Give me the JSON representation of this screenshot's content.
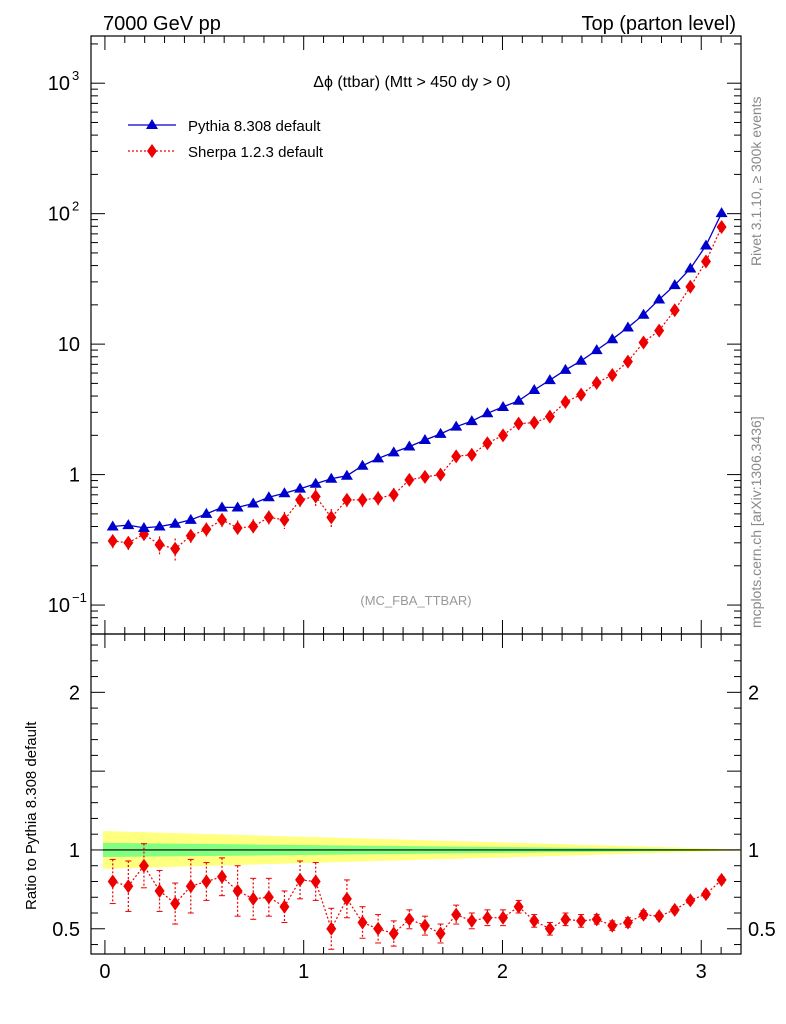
{
  "header": {
    "left": "7000 GeV pp",
    "right": "Top (parton level)"
  },
  "side": {
    "rivet": "Rivet 3.1.10, ≥ 300k events",
    "mcplots": "mcplots.cern.ch [arXiv:1306.3436]"
  },
  "chart_data": [
    {
      "type": "scatter",
      "panel": "main",
      "title": "Δϕ (ttbar) (Mtt > 450 dy > 0)",
      "watermark": "(MC_FBA_TTBAR)",
      "xlabel": "",
      "ylabel": "",
      "yscale": "log",
      "xlim": [
        -0.07,
        3.2
      ],
      "ylim": [
        0.06,
        2300
      ],
      "legend_position": "top-left",
      "y_ticks": [
        {
          "base": "10",
          "exp": "−1",
          "value": 0.1
        },
        {
          "base": "1",
          "exp": "",
          "value": 1
        },
        {
          "base": "10",
          "exp": "",
          "value": 10
        },
        {
          "base": "10",
          "exp": "2",
          "value": 100
        },
        {
          "base": "10",
          "exp": "3",
          "value": 1000
        }
      ],
      "x": [
        0.0393,
        0.1178,
        0.1963,
        0.2749,
        0.3534,
        0.432,
        0.5105,
        0.589,
        0.6676,
        0.7461,
        0.8247,
        0.9032,
        0.9817,
        1.0603,
        1.1388,
        1.2174,
        1.2959,
        1.3744,
        1.453,
        1.5315,
        1.6101,
        1.6886,
        1.7671,
        1.8457,
        1.9242,
        2.0028,
        2.0813,
        2.1598,
        2.2384,
        2.3169,
        2.3955,
        2.474,
        2.5525,
        2.6311,
        2.7096,
        2.7882,
        2.8667,
        2.9452,
        3.0238,
        3.1023
      ],
      "series": [
        {
          "name": "Pythia 8.308 default",
          "color": "#0000cc",
          "marker": "triangle",
          "line": "solid",
          "values": [
            0.4,
            0.41,
            0.39,
            0.4,
            0.42,
            0.45,
            0.5,
            0.56,
            0.56,
            0.6,
            0.67,
            0.72,
            0.78,
            0.85,
            0.93,
            0.98,
            1.17,
            1.33,
            1.48,
            1.64,
            1.84,
            2.05,
            2.33,
            2.57,
            2.95,
            3.3,
            3.68,
            4.45,
            5.3,
            6.35,
            7.45,
            9.0,
            10.9,
            13.4,
            16.8,
            22.0,
            28.3,
            38.0,
            57.0,
            101.0
          ]
        },
        {
          "name": "Sherpa 1.2.3 default",
          "color": "#ee0000",
          "marker": "diamond",
          "line": "dotted",
          "values": [
            0.31,
            0.3,
            0.35,
            0.29,
            0.27,
            0.34,
            0.38,
            0.45,
            0.39,
            0.4,
            0.47,
            0.45,
            0.64,
            0.68,
            0.47,
            0.64,
            0.64,
            0.66,
            0.7,
            0.91,
            0.96,
            1.0,
            1.38,
            1.42,
            1.74,
            2.0,
            2.46,
            2.5,
            2.78,
            3.6,
            4.1,
            5.05,
            5.8,
            7.35,
            10.3,
            12.7,
            18.2,
            27.5,
            43.0,
            79.0
          ],
          "rel_err": [
            0.12,
            0.12,
            0.11,
            0.16,
            0.2,
            0.12,
            0.13,
            0.12,
            0.14,
            0.14,
            0.13,
            0.15,
            0.12,
            0.16,
            0.16,
            0.12,
            0.12,
            0.13,
            0.13,
            0.09,
            0.1,
            0.1,
            0.07,
            0.07,
            0.07,
            0.07,
            0.06,
            0.07,
            0.07,
            0.05,
            0.05,
            0.04,
            0.04,
            0.04,
            0.03,
            0.03,
            0.03,
            0.02,
            0.02,
            0.02
          ]
        }
      ]
    },
    {
      "type": "scatter",
      "panel": "ratio",
      "ylabel": "Ratio to Pythia 8.308 default",
      "xlim": [
        -0.07,
        3.2
      ],
      "ylim": [
        0.34,
        2.37
      ],
      "x_ticks": [
        0,
        1,
        2,
        3
      ],
      "y_ticks": [
        0.5,
        1,
        2
      ],
      "reference": 1.0,
      "band_inner": [
        0.045,
        0.028
      ],
      "band_outer": [
        0.12,
        0.004
      ],
      "series": [
        {
          "name": "Sherpa 1.2.3 default",
          "color": "#ee0000",
          "values": [
            0.8,
            0.77,
            0.9,
            0.74,
            0.66,
            0.77,
            0.8,
            0.83,
            0.74,
            0.69,
            0.7,
            0.64,
            0.81,
            0.8,
            0.5,
            0.69,
            0.54,
            0.5,
            0.47,
            0.56,
            0.52,
            0.47,
            0.59,
            0.55,
            0.57,
            0.57,
            0.64,
            0.55,
            0.5,
            0.56,
            0.55,
            0.56,
            0.52,
            0.54,
            0.59,
            0.58,
            0.62,
            0.68,
            0.72,
            0.81
          ],
          "err": [
            0.14,
            0.16,
            0.14,
            0.13,
            0.13,
            0.17,
            0.12,
            0.12,
            0.16,
            0.13,
            0.12,
            0.1,
            0.12,
            0.12,
            0.13,
            0.12,
            0.1,
            0.09,
            0.08,
            0.06,
            0.06,
            0.06,
            0.06,
            0.05,
            0.05,
            0.05,
            0.04,
            0.04,
            0.04,
            0.04,
            0.04,
            0.03,
            0.03,
            0.03,
            0.025,
            0.02,
            0.02,
            0.02,
            0.02,
            0.02
          ]
        }
      ]
    }
  ]
}
